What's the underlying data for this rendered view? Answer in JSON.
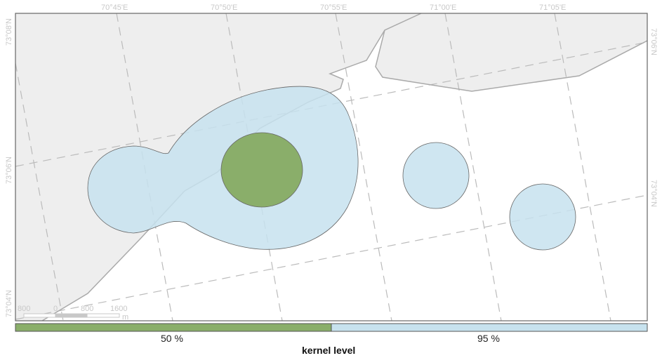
{
  "map": {
    "colors": {
      "land": "#eeeeee",
      "coastline": "#aaaaaa",
      "graticule": "#bbbbbb",
      "kernel_50": "#8aae6a",
      "kernel_95": "#c7e2ee",
      "kernel_outline": "#666666",
      "frame": "#666666"
    },
    "longitude_labels": [
      "70°45'E",
      "70°50'E",
      "70°55'E",
      "71°00'E",
      "71°05'E"
    ],
    "latitude_labels_left": [
      "73°08'N",
      "73°06'N",
      "73°04'N"
    ],
    "latitude_labels_right": [
      "73°06'N",
      "73°04'N"
    ],
    "scale_bar": {
      "ticks": [
        "800",
        "0",
        "800",
        "1600"
      ],
      "unit": "m"
    }
  },
  "legend": {
    "title": "kernel level",
    "items": [
      {
        "label": "50 %",
        "color": "#8aae6a"
      },
      {
        "label": "95 %",
        "color": "#c7e2ee"
      }
    ]
  }
}
